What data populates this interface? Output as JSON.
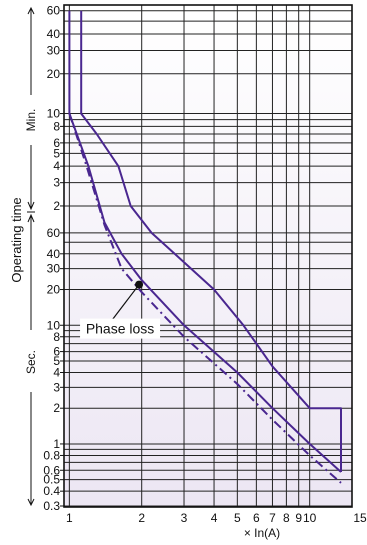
{
  "chart_data": {
    "type": "line",
    "title": "",
    "xlabel": "× In(A)",
    "ylabel": "Operating time",
    "x_scale": "log",
    "y_scale": "log",
    "xlim": [
      0.95,
      15
    ],
    "y_units": {
      "minutes_label": "Min.",
      "seconds_label": "Sec."
    },
    "x_tick_labels": [
      "1",
      "2",
      "3",
      "4",
      "5",
      "6",
      "7",
      "8",
      "9",
      "10",
      "15"
    ],
    "y_tick_labels_minutes": [
      "60",
      "40",
      "30",
      "20",
      "10",
      "8",
      "6",
      "5",
      "4",
      "3",
      "2"
    ],
    "y_tick_labels_seconds": [
      "60",
      "40",
      "30",
      "20",
      "10",
      "8",
      "6",
      "5",
      "4",
      "3",
      "2",
      "1",
      "0.8",
      "0.6",
      "0.5",
      "0.4",
      "0.3"
    ],
    "grid": true,
    "background_color": "#ece6f3",
    "series_color": "#4a2790",
    "annotation": {
      "text": "Phase loss",
      "x": 1.95,
      "y_seconds": 22
    },
    "series": [
      {
        "style": "solid",
        "points": [
          [
            1.12,
            3600
          ],
          [
            1.12,
            600
          ],
          [
            1.3,
            420
          ],
          [
            1.6,
            240
          ],
          [
            1.8,
            120
          ],
          [
            2.2,
            60
          ],
          [
            3,
            34
          ],
          [
            4,
            20
          ],
          [
            5.3,
            10
          ],
          [
            7,
            4.5
          ],
          [
            10,
            2.0
          ],
          [
            13.5,
            2.0
          ],
          [
            13.5,
            0.58
          ]
        ]
      },
      {
        "style": "solid",
        "points": [
          [
            1.0,
            3600
          ],
          [
            1.0,
            600
          ],
          [
            1.2,
            240
          ],
          [
            1.4,
            90
          ],
          [
            1.65,
            40
          ],
          [
            2.0,
            24
          ],
          [
            3,
            10
          ],
          [
            5,
            4
          ],
          [
            7,
            2
          ],
          [
            10,
            1
          ],
          [
            13.5,
            0.58
          ]
        ]
      },
      {
        "style": "dashdot",
        "points": [
          [
            1.0,
            600
          ],
          [
            1.18,
            240
          ],
          [
            1.4,
            70
          ],
          [
            1.65,
            30
          ],
          [
            2.0,
            19
          ],
          [
            3,
            8
          ],
          [
            5,
            3.2
          ],
          [
            7,
            1.6
          ],
          [
            10,
            0.8
          ],
          [
            13.5,
            0.47
          ]
        ]
      }
    ]
  }
}
